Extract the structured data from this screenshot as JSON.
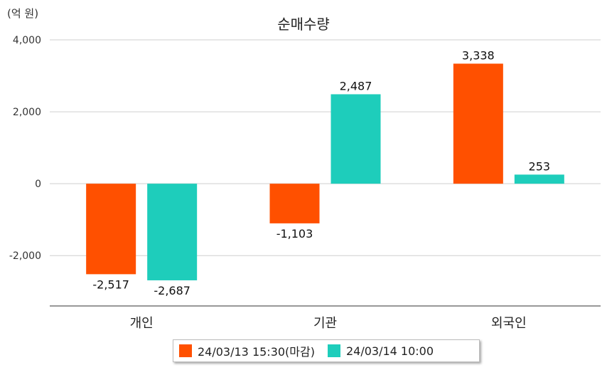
{
  "chart_data": {
    "type": "bar",
    "title": "순매수량",
    "unit_label": "(억 원)",
    "categories": [
      "개인",
      "기관",
      "외국인"
    ],
    "series": [
      {
        "name": "24/03/13 15:30(마감)",
        "color": "#ff5000",
        "values": [
          -2517,
          -1103,
          3338
        ],
        "labels": [
          "-2,517",
          "-1,103",
          "3,338"
        ]
      },
      {
        "name": "24/03/14 10:00",
        "color": "#1ecdbb",
        "values": [
          -2687,
          2487,
          253
        ],
        "labels": [
          "-2,687",
          "2,487",
          "253"
        ]
      }
    ],
    "ylim": [
      -3400,
      4000
    ],
    "yticks": [
      4000,
      2000,
      0,
      -2000
    ],
    "ytick_labels": [
      "4,000",
      "2,000",
      "0",
      "-2,000"
    ],
    "grid": true,
    "legend_position": "bottom"
  }
}
